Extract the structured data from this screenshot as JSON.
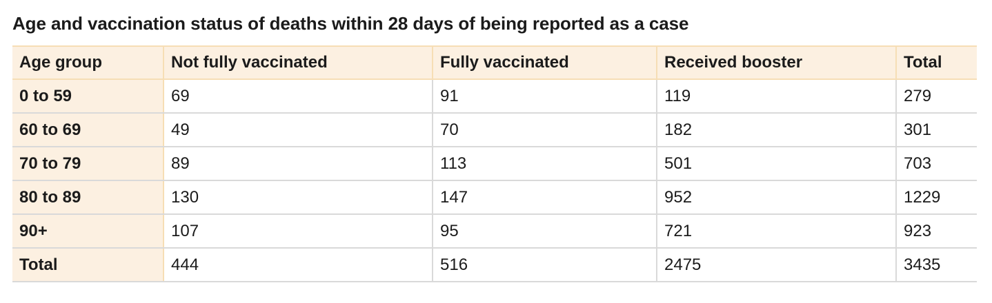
{
  "title": "Age and vaccination status of deaths within 28 days of being reported as a case",
  "colors": {
    "header_background": "#fcf0e1",
    "header_border": "#f6deb5",
    "grid_line": "#d9d9d9",
    "text": "#1b1b1b"
  },
  "chart_data": {
    "type": "table",
    "title": "Age and vaccination status of deaths within 28 days of being reported as a case",
    "columns": [
      "Age group",
      "Not fully vaccinated",
      "Fully vaccinated",
      "Received booster",
      "Total"
    ],
    "rows": [
      [
        "0 to 59",
        "69",
        "91",
        "119",
        "279"
      ],
      [
        "60 to 69",
        "49",
        "70",
        "182",
        "301"
      ],
      [
        "70 to 79",
        "89",
        "113",
        "501",
        "703"
      ],
      [
        "80 to 89",
        "130",
        "147",
        "952",
        "1229"
      ],
      [
        "90+",
        "107",
        "95",
        "721",
        "923"
      ],
      [
        "Total",
        "444",
        "516",
        "2475",
        "3435"
      ]
    ]
  }
}
